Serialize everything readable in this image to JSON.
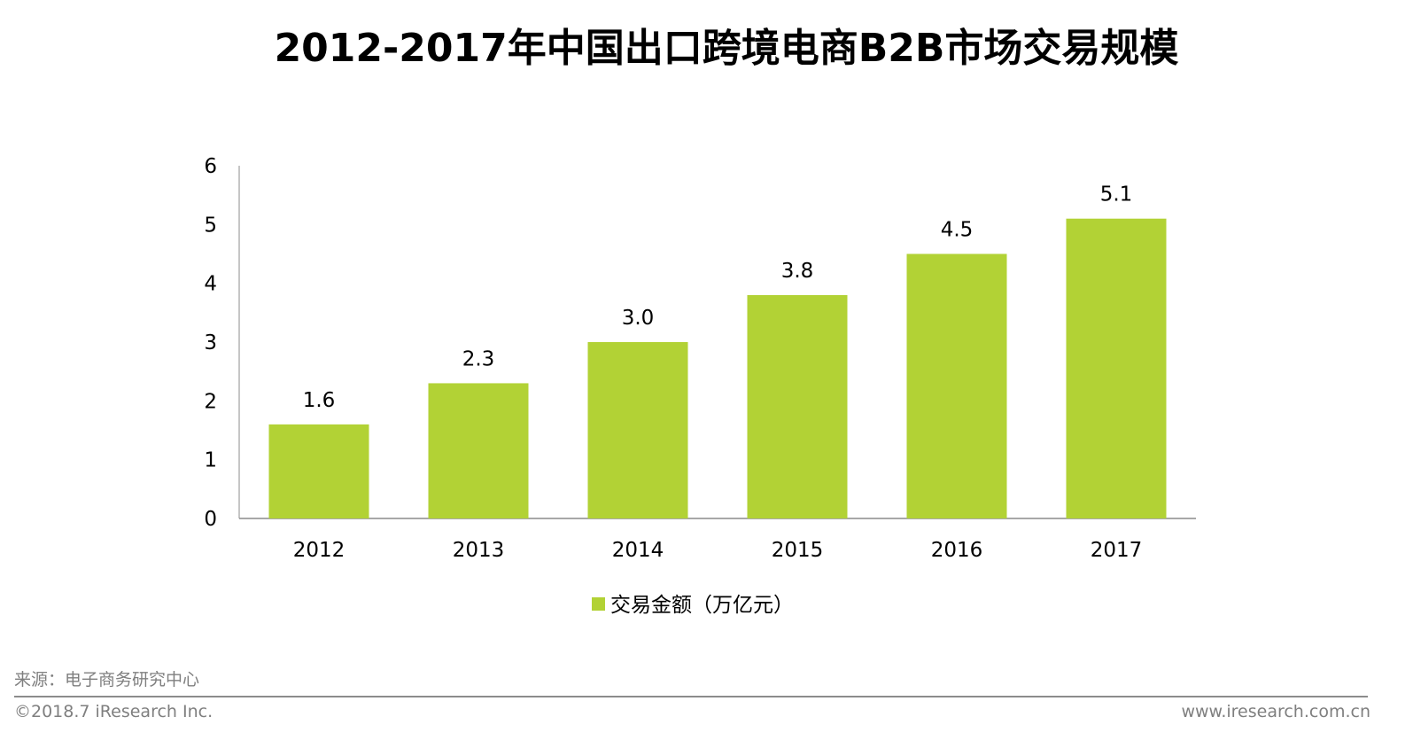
{
  "chart_data": {
    "type": "bar",
    "title": "2012-2017年中国出口跨境电商B2B市场交易规模",
    "categories": [
      "2012",
      "2013",
      "2014",
      "2015",
      "2016",
      "2017"
    ],
    "series": [
      {
        "name": "交易金额（万亿元）",
        "values": [
          1.6,
          2.3,
          3.0,
          3.8,
          4.5,
          5.1
        ],
        "labels": [
          "1.6",
          "2.3",
          "3.0",
          "3.8",
          "4.5",
          "5.1"
        ],
        "color": "#b2d235"
      }
    ],
    "yticks": [
      "0",
      "1",
      "2",
      "3",
      "4",
      "5",
      "6"
    ],
    "ylim": [
      0,
      6
    ],
    "xlabel": "",
    "ylabel": "",
    "grid": false,
    "legend": "bottom"
  },
  "footer": {
    "source": "来源：电子商务研究中心",
    "copyright": "©2018.7 iResearch Inc.",
    "website": "www.iresearch.com.cn"
  }
}
